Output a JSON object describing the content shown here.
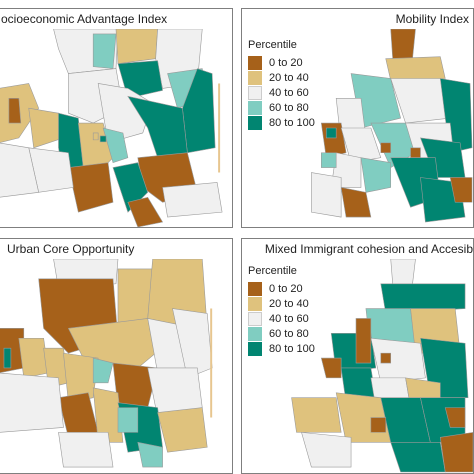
{
  "colors": {
    "p0_20": "#a6611a",
    "p20_40": "#dfc27d",
    "p40_60": "#f0f0f0",
    "p60_80": "#80cdc1",
    "p80_100": "#018571",
    "outline": "#a0a0a0",
    "coast": "#f4d9a8"
  },
  "panels": [
    {
      "title": "ocioeconomic Advantage Index",
      "align": "left"
    },
    {
      "title": "Mobility Index",
      "align": "right"
    },
    {
      "title": "Urban Core Opportunity",
      "align": "left"
    },
    {
      "title": "Mixed Immigrant cohesion and Accesib",
      "align": "right"
    }
  ],
  "legend": {
    "title": "Percentile",
    "items": [
      "0 to 20",
      "20 to 40",
      "40 to 60",
      "60 to 80",
      "80 to 100"
    ]
  }
}
